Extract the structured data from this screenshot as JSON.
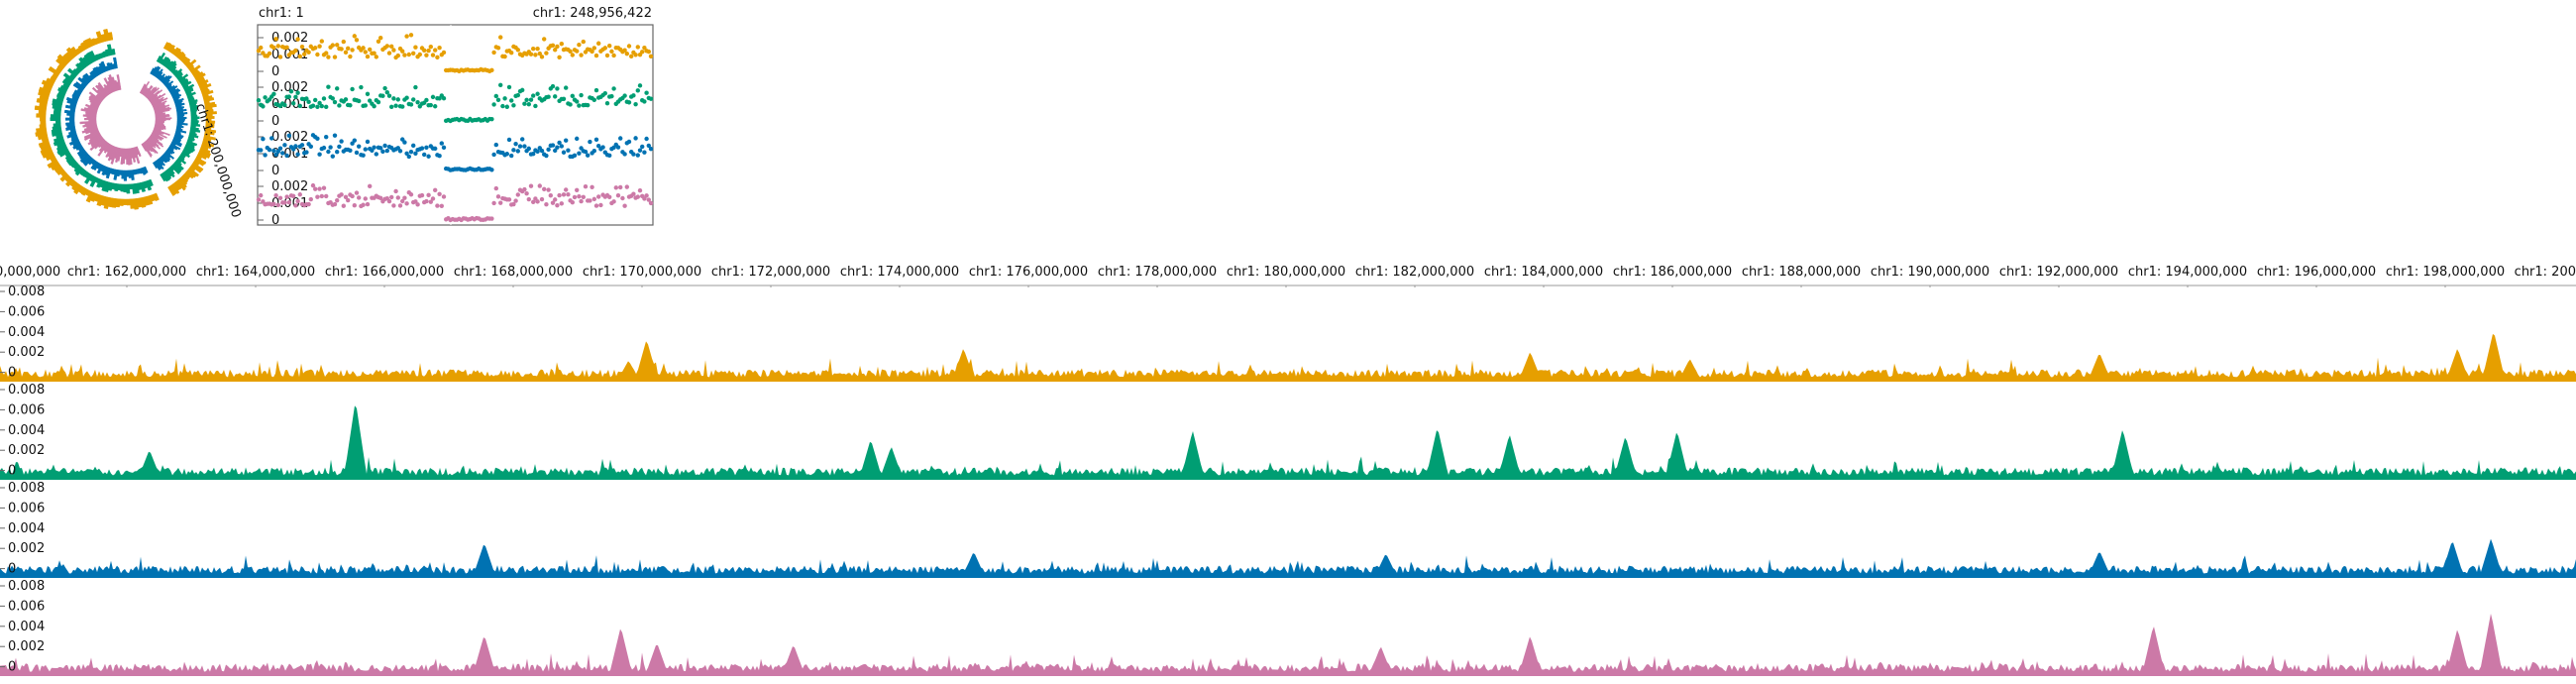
{
  "app": {
    "view": "genome-browser"
  },
  "colors": {
    "orange": "#E69F00",
    "green": "#009E73",
    "blue": "#0072B2",
    "pink": "#CC79A7",
    "axis": "#777777",
    "frame": "#666666",
    "white": "#ffffff"
  },
  "circular": {
    "label": "chr1: 200,000,000",
    "icons": [
      "circular-genome-icon"
    ]
  },
  "overview": {
    "left_label": "chr1: 1",
    "right_label": "chr1: 248,956,422",
    "tracks": [
      {
        "name": "",
        "color_key": "orange",
        "ticks": [
          "0.002",
          "0.001",
          "0"
        ]
      },
      {
        "name": "",
        "color_key": "green",
        "ticks": [
          "0.002",
          "0.001",
          "0"
        ]
      },
      {
        "name": "",
        "color_key": "blue",
        "ticks": [
          "0.002",
          "0.001",
          "0"
        ]
      },
      {
        "name": "",
        "color_key": "pink",
        "ticks": [
          "0.002",
          "0.001",
          "0"
        ]
      }
    ]
  },
  "top_ruler": {
    "start_label": "0,000,000",
    "end_label": "chr1: 200",
    "labels": [
      "chr1: 162,000,000",
      "chr1: 164,000,000",
      "chr1: 166,000,000",
      "chr1: 168,000,000",
      "chr1: 170,000,000",
      "chr1: 172,000,000",
      "chr1: 174,000,000",
      "chr1: 176,000,000",
      "chr1: 178,000,000",
      "chr1: 180,000,000",
      "chr1: 182,000,000",
      "chr1: 184,000,000",
      "chr1: 186,000,000",
      "chr1: 188,000,000",
      "chr1: 190,000,000",
      "chr1: 192,000,000",
      "chr1: 194,000,000",
      "chr1: 196,000,000",
      "chr1: 198,000,000"
    ]
  },
  "tracks": [
    {
      "name": "",
      "color_key": "orange",
      "ticks": [
        "0.008",
        "0.006",
        "0.004",
        "0.002",
        "0"
      ],
      "peaks": [
        {
          "x": 0.244,
          "h": 0.24
        },
        {
          "x": 0.251,
          "h": 0.48
        },
        {
          "x": 0.374,
          "h": 0.38
        },
        {
          "x": 0.594,
          "h": 0.34
        },
        {
          "x": 0.656,
          "h": 0.26
        },
        {
          "x": 0.815,
          "h": 0.33
        },
        {
          "x": 0.954,
          "h": 0.38
        },
        {
          "x": 0.968,
          "h": 0.58
        }
      ]
    },
    {
      "name": "",
      "color_key": "green",
      "ticks": [
        "0.008",
        "0.006",
        "0.004",
        "0.002",
        "0"
      ],
      "peaks": [
        {
          "x": 0.058,
          "h": 0.34
        },
        {
          "x": 0.138,
          "h": 0.9
        },
        {
          "x": 0.338,
          "h": 0.46
        },
        {
          "x": 0.346,
          "h": 0.38
        },
        {
          "x": 0.463,
          "h": 0.56
        },
        {
          "x": 0.558,
          "h": 0.6
        },
        {
          "x": 0.586,
          "h": 0.52
        },
        {
          "x": 0.631,
          "h": 0.5
        },
        {
          "x": 0.651,
          "h": 0.56
        },
        {
          "x": 0.824,
          "h": 0.58
        }
      ]
    },
    {
      "name": "",
      "color_key": "blue",
      "ticks": [
        "0.008",
        "0.006",
        "0.004",
        "0.002",
        "0"
      ],
      "peaks": [
        {
          "x": 0.188,
          "h": 0.4
        },
        {
          "x": 0.378,
          "h": 0.3
        },
        {
          "x": 0.538,
          "h": 0.28
        },
        {
          "x": 0.815,
          "h": 0.31
        },
        {
          "x": 0.952,
          "h": 0.43
        },
        {
          "x": 0.967,
          "h": 0.45
        }
      ]
    },
    {
      "name": "",
      "color_key": "pink",
      "ticks": [
        "0.008",
        "0.006",
        "0.004",
        "0.002",
        "0"
      ],
      "peaks": [
        {
          "x": 0.188,
          "h": 0.47
        },
        {
          "x": 0.241,
          "h": 0.56
        },
        {
          "x": 0.255,
          "h": 0.38
        },
        {
          "x": 0.308,
          "h": 0.36
        },
        {
          "x": 0.536,
          "h": 0.34
        },
        {
          "x": 0.594,
          "h": 0.46
        },
        {
          "x": 0.836,
          "h": 0.58
        },
        {
          "x": 0.954,
          "h": 0.54
        },
        {
          "x": 0.967,
          "h": 0.72
        }
      ]
    }
  ]
}
